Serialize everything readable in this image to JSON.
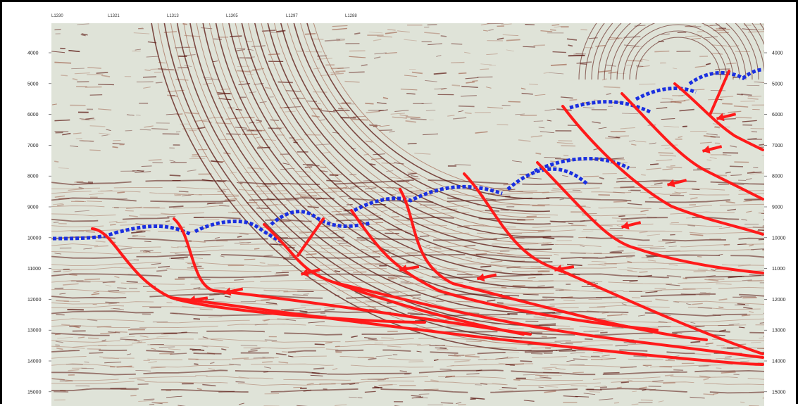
{
  "depth_axis": {
    "ticks": [
      "4000",
      "5000",
      "6000",
      "7000",
      "8000",
      "9000",
      "10000",
      "11000",
      "12000",
      "13000",
      "14000",
      "15000"
    ]
  },
  "trace_labels": [
    "L1330",
    "L1321",
    "L1313",
    "L1305",
    "L1297",
    "L1288"
  ],
  "colors": {
    "fault": "#ff1a1a",
    "horizon": "#1a2fe0",
    "seismic_background": "#dfe3d8",
    "reflector_dark": "#5a1510",
    "reflector_mid": "#a8725e"
  }
}
